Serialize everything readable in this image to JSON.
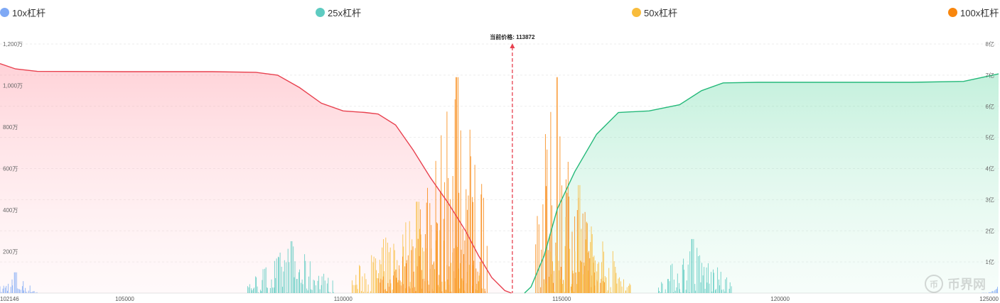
{
  "legend": [
    {
      "label": "10x杠杆",
      "color": "#7fa9f5"
    },
    {
      "label": "25x杠杆",
      "color": "#5ecbc1"
    },
    {
      "label": "50x杠杆",
      "color": "#f8bc3c"
    },
    {
      "label": "100x杠杆",
      "color": "#f8860d"
    }
  ],
  "watermark": {
    "icon": "coin-logo-icon",
    "glyph": "币",
    "text": "币界网"
  },
  "chart_data": {
    "type": "bar",
    "current_price_label": "当前价格: 113872",
    "current_price": 113872,
    "x_range": [
      102146,
      125000
    ],
    "x_ticks": [
      "102146",
      "105000",
      "110000",
      "115000",
      "120000",
      "125000"
    ],
    "x_tick_values": [
      102146,
      105000,
      110000,
      115000,
      120000,
      125000
    ],
    "y_left": {
      "min": 0,
      "max": 12000000,
      "ticks": [
        {
          "v": 2000000,
          "label": "200万"
        },
        {
          "v": 4000000,
          "label": "400万"
        },
        {
          "v": 6000000,
          "label": "600万"
        },
        {
          "v": 8000000,
          "label": "800万"
        },
        {
          "v": 10000000,
          "label": "1,000万"
        },
        {
          "v": 12000000,
          "label": "1,200万"
        }
      ]
    },
    "y_right": {
      "min": 0,
      "max": 800000000,
      "ticks": [
        {
          "v": 100000000,
          "label": "1亿"
        },
        {
          "v": 200000000,
          "label": "2亿"
        },
        {
          "v": 300000000,
          "label": "3亿"
        },
        {
          "v": 400000000,
          "label": "4亿"
        },
        {
          "v": 500000000,
          "label": "5亿"
        },
        {
          "v": 600000000,
          "label": "6亿"
        },
        {
          "v": 700000000,
          "label": "7亿"
        },
        {
          "v": 800000000,
          "label": "8亿"
        }
      ]
    },
    "long_cumulative": {
      "name": "",
      "color": "#e8414f",
      "points": [
        [
          102146,
          737000000
        ],
        [
          102500,
          720000000
        ],
        [
          103000,
          712000000
        ],
        [
          105000,
          711000000
        ],
        [
          107000,
          711000000
        ],
        [
          108000,
          709000000
        ],
        [
          108500,
          700000000
        ],
        [
          109000,
          660000000
        ],
        [
          109500,
          610000000
        ],
        [
          110000,
          585000000
        ],
        [
          110500,
          580000000
        ],
        [
          110800,
          575000000
        ],
        [
          111200,
          540000000
        ],
        [
          111600,
          460000000
        ],
        [
          112000,
          370000000
        ],
        [
          112400,
          290000000
        ],
        [
          112800,
          200000000
        ],
        [
          113100,
          120000000
        ],
        [
          113400,
          50000000
        ],
        [
          113700,
          8000000
        ],
        [
          113850,
          0
        ]
      ]
    },
    "short_cumulative": {
      "name": "",
      "color": "#25b97a",
      "points": [
        [
          114150,
          0
        ],
        [
          114300,
          20000000
        ],
        [
          114600,
          120000000
        ],
        [
          114900,
          270000000
        ],
        [
          115300,
          390000000
        ],
        [
          115800,
          510000000
        ],
        [
          116300,
          580000000
        ],
        [
          117000,
          585000000
        ],
        [
          117700,
          605000000
        ],
        [
          118200,
          650000000
        ],
        [
          118700,
          675000000
        ],
        [
          119500,
          677000000
        ],
        [
          121000,
          677000000
        ],
        [
          123000,
          677000000
        ],
        [
          124200,
          680000000
        ],
        [
          125000,
          704000000
        ]
      ]
    },
    "liquidation_bars": [
      {
        "leverage": "10x",
        "x_from": 102146,
        "x_to": 103000,
        "max": 1000000,
        "peak_at": 102500
      },
      {
        "leverage": "25x",
        "x_from": 107800,
        "x_to": 109800,
        "max": 2500000,
        "peak_at": 108800
      },
      {
        "leverage": "50x",
        "x_from": 110200,
        "x_to": 113200,
        "max": 4400000,
        "peak_at": 111700
      },
      {
        "leverage": "100x",
        "x_from": 110800,
        "x_to": 113300,
        "max": 10400000,
        "peak_at": 112600
      },
      {
        "leverage": "100x",
        "x_from": 114400,
        "x_to": 116000,
        "max": 10400000,
        "peak_at": 114900
      },
      {
        "leverage": "50x",
        "x_from": 114600,
        "x_to": 116600,
        "max": 5200000,
        "peak_at": 115400
      },
      {
        "leverage": "25x",
        "x_from": 117200,
        "x_to": 118900,
        "max": 2600000,
        "peak_at": 118000
      },
      {
        "leverage": "10x",
        "x_from": 124600,
        "x_to": 125000,
        "max": 300000,
        "peak_at": 125000
      }
    ]
  }
}
